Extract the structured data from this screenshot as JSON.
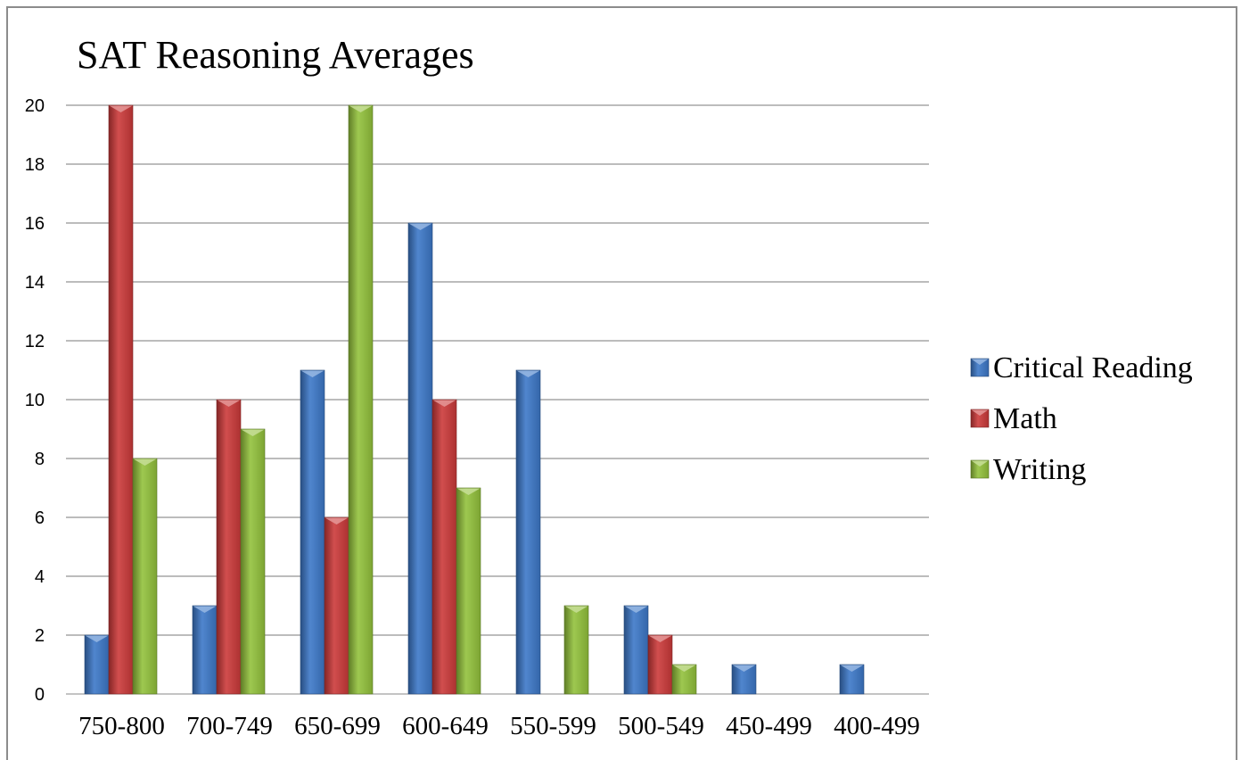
{
  "chart_data": {
    "type": "bar",
    "title": "SAT Reasoning Averages",
    "xlabel": "",
    "ylabel": "",
    "categories": [
      "750-800",
      "700-749",
      "650-699",
      "600-649",
      "550-599",
      "500-549",
      "450-499",
      "400-499"
    ],
    "series": [
      {
        "name": "Critical Reading",
        "values": [
          2,
          3,
          11,
          16,
          11,
          3,
          1,
          1
        ],
        "color": "#3d78c8"
      },
      {
        "name": "Math",
        "values": [
          20,
          10,
          6,
          10,
          0,
          2,
          0,
          0
        ],
        "color": "#cc3a3a"
      },
      {
        "name": "Writing",
        "values": [
          8,
          9,
          20,
          7,
          3,
          1,
          0,
          0
        ],
        "color": "#93c23c"
      }
    ],
    "ylim": [
      0,
      20
    ],
    "yticks": [
      "0",
      "2",
      "4",
      "6",
      "8",
      "10",
      "12",
      "14",
      "16",
      "18",
      "20"
    ],
    "grid": true,
    "legend_position": "right"
  }
}
